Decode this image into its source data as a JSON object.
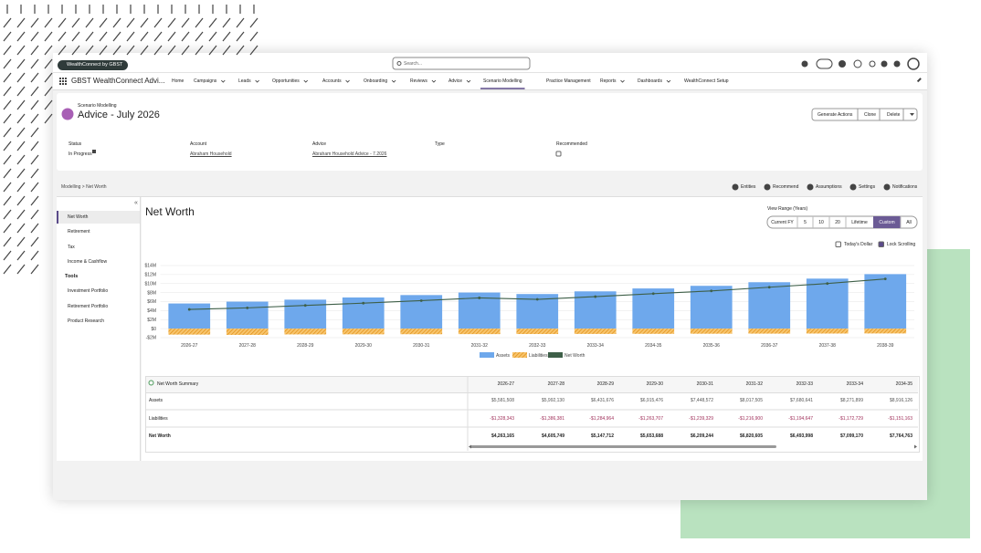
{
  "header": {
    "badge": "WealthConnect by GBST",
    "search_placeholder": "Search..."
  },
  "nav": {
    "app_name": "GBST WealthConnect Advi...",
    "active": 8,
    "items": [
      {
        "label": "Home",
        "menu": false
      },
      {
        "label": "Campaigns",
        "menu": true
      },
      {
        "label": "Leads",
        "menu": true
      },
      {
        "label": "Opportunities",
        "menu": true
      },
      {
        "label": "Accounts",
        "menu": true
      },
      {
        "label": "Onboarding",
        "menu": true
      },
      {
        "label": "Reviews",
        "menu": true
      },
      {
        "label": "Advice",
        "menu": true
      },
      {
        "label": "Scenario Modelling",
        "menu": false
      },
      {
        "label": "Practice Management",
        "menu": false
      },
      {
        "label": "Reports",
        "menu": true
      },
      {
        "label": "Dashboards",
        "menu": true
      },
      {
        "label": "WealthConnect Setup",
        "menu": false
      }
    ]
  },
  "record": {
    "object": "Scenario Modelling",
    "title": "Advice - July 2026",
    "actions": [
      "Generate Actions",
      "Clone",
      "Delete"
    ],
    "fields": [
      {
        "label": "Status",
        "value": "In Progress"
      },
      {
        "label": "Account",
        "value": "Abraham Household"
      },
      {
        "label": "Advice",
        "value": "Abraham Household Advice - 7.2026"
      },
      {
        "label": "Type"
      },
      {
        "label": "Recommended",
        "checked": false
      }
    ]
  },
  "breadcrumb": "Modelling > Net Worth",
  "toolbar": [
    "Entities",
    "Recommend",
    "Assumptions",
    "Settings",
    "Notifications"
  ],
  "sidebar": {
    "active": 0,
    "items": [
      "Net Worth",
      "Retirement",
      "Tax",
      "Income & Cashflow"
    ],
    "tools_heading": "Tools",
    "tools": [
      "Investment Portfolio",
      "Retirement Portfolio",
      "Product Research"
    ]
  },
  "panel": {
    "title": "Net Worth",
    "view_range": {
      "label": "View Range (Years)",
      "options": [
        "Current FY",
        "5",
        "10",
        "20",
        "Lifetime",
        "Custom",
        "All"
      ],
      "active": 5
    },
    "toggles": [
      {
        "label": "Today's Dollar",
        "checked": false
      },
      {
        "label": "Lock Scrolling",
        "checked": true
      }
    ]
  },
  "chart": {
    "type": "bar",
    "grid": true,
    "categories": [
      "2026-27",
      "2027-28",
      "2028-29",
      "2029-30",
      "2030-31",
      "2031-32",
      "2032-33",
      "2033-34",
      "2034-35",
      "2035-36",
      "2036-37",
      "2037-38",
      "2038-39"
    ],
    "series": [
      {
        "name": "Assets",
        "color": "#6ea8ec",
        "values": [
          5581508,
          5992130,
          6431676,
          6915476,
          7448572,
          8017505,
          7680641,
          8271899,
          8916126,
          9500000,
          10300000,
          11100000,
          12100000
        ]
      },
      {
        "name": "Liabilities",
        "color": "#f2a33a",
        "pattern": "hatch",
        "values": [
          -1328343,
          -1386381,
          -1284964,
          -1263707,
          -1239329,
          -1216900,
          -1194647,
          -1172729,
          -1151163,
          -1130000,
          -1110000,
          -1090000,
          -1070000
        ]
      },
      {
        "name": "Net Worth",
        "type": "line",
        "color": "#3e5f48",
        "values": [
          4263165,
          4605749,
          5147712,
          5653688,
          6209244,
          6820605,
          6493998,
          7099170,
          7764763,
          8370000,
          9190000,
          10010000,
          11030000
        ]
      }
    ],
    "ylim": [
      -2000000,
      14000000
    ],
    "yticks": [
      {
        "value": 14000000,
        "label": "$14M"
      },
      {
        "value": 12000000,
        "label": "$12M"
      },
      {
        "value": 10000000,
        "label": "$10M"
      },
      {
        "value": 8000000,
        "label": "$8M"
      },
      {
        "value": 6000000,
        "label": "$6M"
      },
      {
        "value": 4000000,
        "label": "$4M"
      },
      {
        "value": 2000000,
        "label": "$2M"
      },
      {
        "value": 0,
        "label": "$0"
      },
      {
        "value": -2000000,
        "label": "-$2M"
      }
    ]
  },
  "summary": {
    "title": "Net Worth Summary",
    "columns": [
      "2026-27",
      "2027-28",
      "2028-29",
      "2029-30",
      "2030-31",
      "2031-32",
      "2032-33",
      "2033-34",
      "2034-35"
    ],
    "rows": [
      {
        "label": "Assets",
        "cells": [
          "$5,581,508",
          "$5,992,130",
          "$6,431,676",
          "$6,915,476",
          "$7,448,572",
          "$8,017,505",
          "$7,680,641",
          "$8,271,899",
          "$8,916,126"
        ]
      },
      {
        "label": "Liabilities",
        "cells": [
          "-$1,328,343",
          "-$1,386,381",
          "-$1,284,964",
          "-$1,263,707",
          "-$1,239,329",
          "-$1,216,900",
          "-$1,194,647",
          "-$1,172,729",
          "-$1,151,163"
        ]
      },
      {
        "label": "Net Worth",
        "cells": [
          "$4,263,165",
          "$4,605,749",
          "$5,147,712",
          "$5,653,688",
          "$6,209,244",
          "$6,820,605",
          "$6,493,998",
          "$7,099,170",
          "$7,764,763"
        ]
      }
    ]
  }
}
